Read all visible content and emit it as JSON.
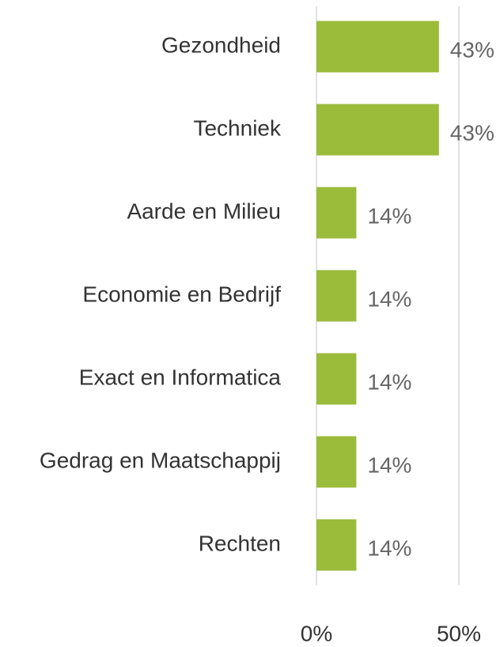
{
  "chart_data": {
    "type": "bar",
    "orientation": "horizontal",
    "categories": [
      "Gezondheid",
      "Techniek",
      "Aarde en Milieu",
      "Economie en Bedrijf",
      "Exact en Informatica",
      "Gedrag en Maatschappij",
      "Rechten"
    ],
    "values": [
      43,
      43,
      14,
      14,
      14,
      14,
      14
    ],
    "value_labels": [
      "43%",
      "43%",
      "14%",
      "14%",
      "14%",
      "14%",
      "14%"
    ],
    "color": "#9bbb3b",
    "xlim": [
      0,
      50
    ],
    "xticks": [
      {
        "value": 0,
        "label": "0%"
      },
      {
        "value": 50,
        "label": "50%"
      }
    ],
    "grid": true
  }
}
